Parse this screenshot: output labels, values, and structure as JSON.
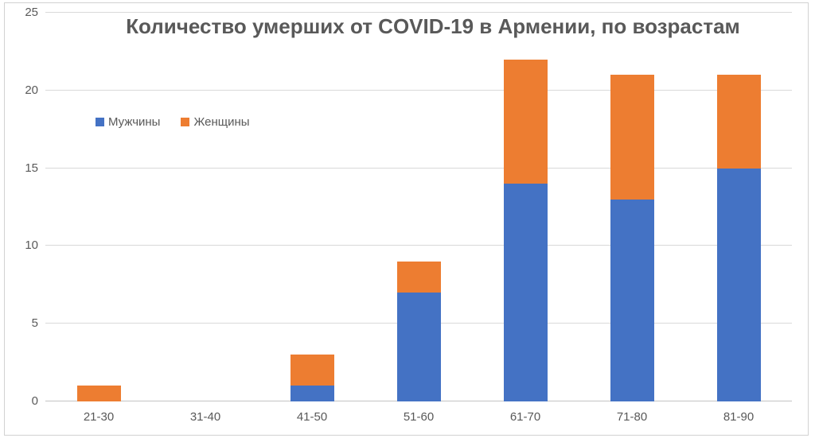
{
  "chart_data": {
    "type": "bar",
    "stacked": true,
    "title": "Количество умерших от COVID-19 в Армении, по возрастам",
    "categories": [
      "21-30",
      "31-40",
      "41-50",
      "51-60",
      "61-70",
      "71-80",
      "81-90"
    ],
    "series": [
      {
        "name": "Мужчины",
        "color": "#4472C4",
        "values": [
          0,
          0,
          1,
          7,
          14,
          13,
          15
        ]
      },
      {
        "name": "Женщины",
        "color": "#ED7D31",
        "values": [
          1,
          0,
          2,
          2,
          8,
          8,
          6
        ]
      }
    ],
    "totals": [
      1,
      0,
      3,
      9,
      22,
      21,
      21
    ],
    "xlabel": "",
    "ylabel": "",
    "ylim": [
      0,
      25
    ],
    "yticks": [
      0,
      5,
      10,
      15,
      20,
      25
    ],
    "grid": true,
    "legend_position": "inside-upper-left",
    "colors": {
      "text": "#595959",
      "gridline": "#d9d9d9",
      "axis_line": "#c3c3c3",
      "frame_border": "#d2d2d2",
      "background": "#ffffff"
    }
  }
}
